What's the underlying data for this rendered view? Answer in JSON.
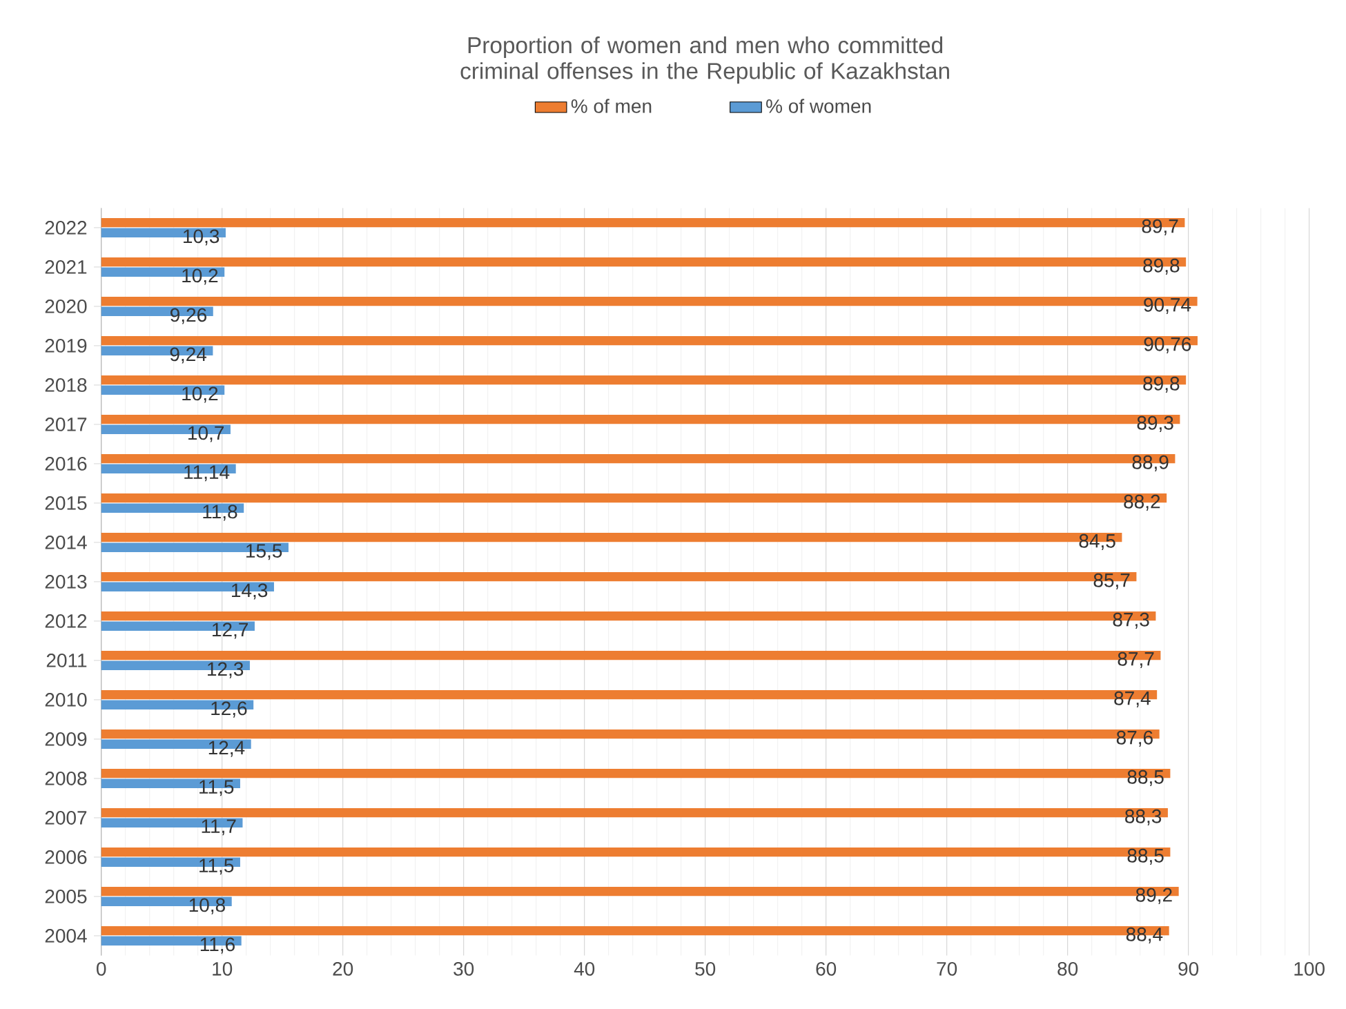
{
  "chart_data": {
    "type": "bar",
    "orientation": "horizontal",
    "title": "Proportion of women and men who committed criminal offenses in the Republic of Kazakhstan",
    "categories": [
      "2022",
      "2021",
      "2020",
      "2019",
      "2018",
      "2017",
      "2016",
      "2015",
      "2014",
      "2013",
      "2012",
      "2011",
      "2010",
      "2009",
      "2008",
      "2007",
      "2006",
      "2005",
      "2004"
    ],
    "series": [
      {
        "name": "% of men",
        "color": "#ed7d31",
        "values": [
          89.7,
          89.8,
          90.74,
          90.76,
          89.8,
          89.3,
          88.9,
          88.2,
          84.5,
          85.7,
          87.3,
          87.7,
          87.4,
          87.6,
          88.5,
          88.3,
          88.5,
          89.2,
          88.4
        ],
        "value_labels": [
          "89,7",
          "89,8",
          "90,74",
          "90,76",
          "89,8",
          "89,3",
          "88,9",
          "88,2",
          "84,5",
          "85,7",
          "87,3",
          "87,7",
          "87,4",
          "87,6",
          "88,5",
          "88,3",
          "88,5",
          "89,2",
          "88,4"
        ]
      },
      {
        "name": "% of women",
        "color": "#5b9bd5",
        "values": [
          10.3,
          10.2,
          9.26,
          9.24,
          10.2,
          10.7,
          11.14,
          11.8,
          15.5,
          14.3,
          12.7,
          12.3,
          12.6,
          12.4,
          11.5,
          11.7,
          11.5,
          10.8,
          11.6
        ],
        "value_labels": [
          "10,3",
          "10,2",
          "9,26",
          "9,24",
          "10,2",
          "10,7",
          "11,14",
          "11,8",
          "15,5",
          "14,3",
          "12,7",
          "12,3",
          "12,6",
          "12,4",
          "11,5",
          "11,7",
          "11,5",
          "10,8",
          "11,6"
        ]
      }
    ],
    "xlim": [
      0,
      100
    ],
    "xticks": [
      0,
      10,
      20,
      30,
      40,
      50,
      60,
      70,
      80,
      90,
      100
    ],
    "grid": "x",
    "legend": "top"
  }
}
